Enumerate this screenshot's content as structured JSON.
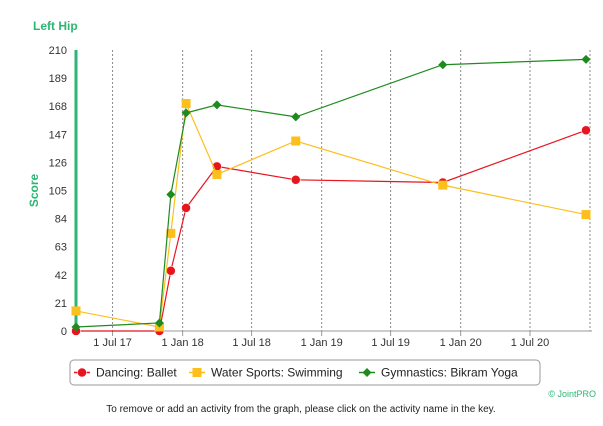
{
  "chart_data": {
    "type": "line",
    "title": "Left Hip",
    "ylabel": "Score",
    "xlabel": "",
    "ylim": [
      0,
      210
    ],
    "yticks": [
      0,
      21,
      42,
      63,
      84,
      105,
      126,
      147,
      168,
      189,
      210
    ],
    "xlim": [
      "2017-03-27",
      "2020-11-25"
    ],
    "xticks": [
      {
        "date": "2017-07-01",
        "label": "1 Jul 17"
      },
      {
        "date": "2018-01-01",
        "label": "1 Jan 18"
      },
      {
        "date": "2018-07-01",
        "label": "1 Jul 18"
      },
      {
        "date": "2019-01-01",
        "label": "1 Jan 19"
      },
      {
        "date": "2019-07-01",
        "label": "1 Jul 19"
      },
      {
        "date": "2020-01-01",
        "label": "1 Jan 20"
      },
      {
        "date": "2020-07-01",
        "label": "1 Jul 20"
      }
    ],
    "grid": "vertical-dashed",
    "legend_position": "bottom-center",
    "series": [
      {
        "name": "Dancing: Ballet",
        "color": "#e8141e",
        "marker": "circle",
        "points": [
          {
            "x": "2017-03-27",
            "y": 0
          },
          {
            "x": "2017-11-01",
            "y": 0
          },
          {
            "x": "2017-12-01",
            "y": 45
          },
          {
            "x": "2018-01-10",
            "y": 92
          },
          {
            "x": "2018-04-01",
            "y": 123
          },
          {
            "x": "2018-10-25",
            "y": 113
          },
          {
            "x": "2019-11-15",
            "y": 111
          },
          {
            "x": "2020-11-25",
            "y": 150
          }
        ]
      },
      {
        "name": "Water Sports: Swimming",
        "color": "#fcbf1c",
        "marker": "square",
        "points": [
          {
            "x": "2017-03-27",
            "y": 15
          },
          {
            "x": "2017-11-01",
            "y": 3
          },
          {
            "x": "2017-12-01",
            "y": 73
          },
          {
            "x": "2018-01-10",
            "y": 170
          },
          {
            "x": "2018-04-01",
            "y": 117
          },
          {
            "x": "2018-10-25",
            "y": 142
          },
          {
            "x": "2019-11-15",
            "y": 109
          },
          {
            "x": "2020-11-25",
            "y": 87
          }
        ]
      },
      {
        "name": "Gymnastics: Bikram Yoga",
        "color": "#1f8b1f",
        "marker": "diamond",
        "points": [
          {
            "x": "2017-03-27",
            "y": 3
          },
          {
            "x": "2017-11-01",
            "y": 6
          },
          {
            "x": "2017-12-01",
            "y": 102
          },
          {
            "x": "2018-01-10",
            "y": 163
          },
          {
            "x": "2018-04-01",
            "y": 169
          },
          {
            "x": "2018-10-25",
            "y": 160
          },
          {
            "x": "2019-11-15",
            "y": 199
          },
          {
            "x": "2020-11-25",
            "y": 203
          }
        ]
      }
    ]
  },
  "credit": "© JointPRO",
  "note": "To remove or add an activity from the graph, please click on the activity name in the key."
}
